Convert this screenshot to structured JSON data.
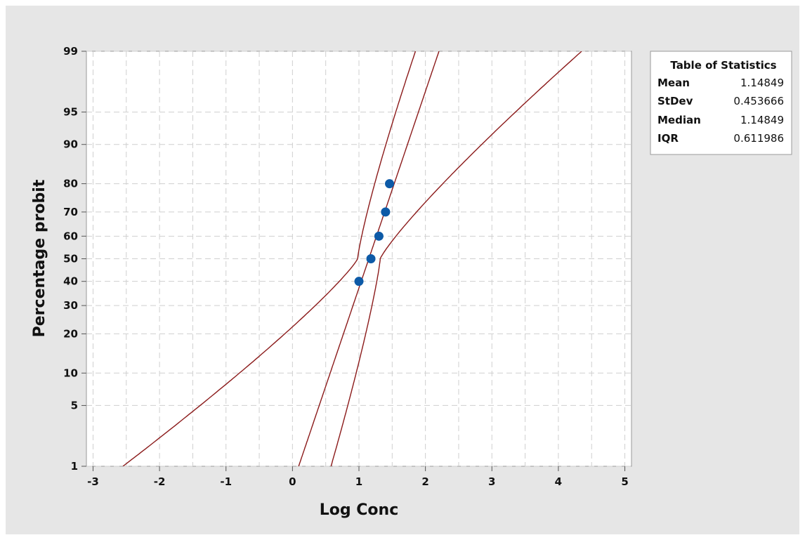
{
  "chart_data": {
    "type": "line",
    "xlabel": "Log Conc",
    "ylabel": "Percentage probit",
    "xlim": [
      -3.1,
      5.1
    ],
    "ylim": [
      1,
      99
    ],
    "y_scale": "probit",
    "grid": true,
    "x_ticks": [
      "-3",
      "-2",
      "-1",
      "0",
      "1",
      "2",
      "3",
      "4",
      "5"
    ],
    "x_tick_values": [
      -3,
      -2,
      -1,
      0,
      1,
      2,
      3,
      4,
      5
    ],
    "y_ticks": [
      "1",
      "5",
      "10",
      "20",
      "30",
      "40",
      "50",
      "60",
      "70",
      "80",
      "90",
      "95",
      "99"
    ],
    "y_tick_values": [
      1,
      5,
      10,
      20,
      30,
      40,
      50,
      60,
      70,
      80,
      90,
      95,
      99
    ],
    "points": {
      "x": [
        1.0,
        1.18,
        1.3,
        1.4,
        1.46
      ],
      "y": [
        40,
        50,
        60,
        70,
        80
      ],
      "color": "#0d5aa7"
    },
    "fit_line": {
      "mean": 1.14849,
      "stdev": 0.453666,
      "color": "#8b1a1a"
    },
    "confidence_band": {
      "center_x_at_50": 1.15,
      "left_x_at_p1": -2.55,
      "right_x_at_p99": 4.35,
      "inner_lower_x_at_p1": 0.1,
      "inner_upper_x_at_p1": 0.58,
      "inner_lower_x_at_p99": 1.85,
      "inner_upper_x_at_p99": 2.2,
      "color": "#8b1a1a"
    }
  },
  "stats_table": {
    "title": "Table of Statistics",
    "rows": [
      {
        "label": "Mean",
        "value": "1.14849"
      },
      {
        "label": "StDev",
        "value": "0.453666"
      },
      {
        "label": "Median",
        "value": "1.14849"
      },
      {
        "label": "IQR",
        "value": "0.611986"
      }
    ]
  }
}
